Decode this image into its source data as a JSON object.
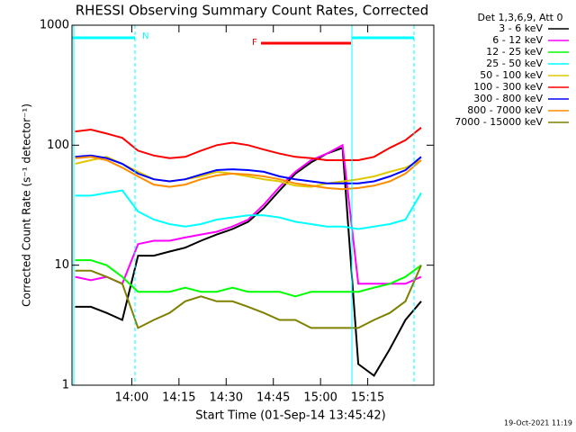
{
  "chart_data": {
    "type": "line",
    "title": "RHESSI Observing Summary Count Rates, Corrected",
    "x_label": "Start Time (01-Sep-14 13:45:42)",
    "y_label": "Corrected Count Rate (s⁻¹ detector⁻¹)",
    "legend_title": "Det 1,3,6,9, Att 0",
    "footer": "19-Oct-2021 11:19",
    "annotations": [
      "N",
      "F"
    ],
    "log_y": true,
    "xlim": [
      821,
      936
    ],
    "xticks": [
      {
        "value": 840,
        "label": "14:00"
      },
      {
        "value": 855,
        "label": "14:15"
      },
      {
        "value": 870,
        "label": "14:30"
      },
      {
        "value": 885,
        "label": "14:45"
      },
      {
        "value": 900,
        "label": "15:00"
      },
      {
        "value": 915,
        "label": "15:15"
      }
    ],
    "ylim": [
      1,
      1000
    ],
    "yticks": [
      1,
      10,
      100,
      1000
    ],
    "x": [
      822,
      827,
      832,
      837,
      842,
      847,
      852,
      857,
      862,
      867,
      872,
      877,
      882,
      887,
      892,
      897,
      902,
      907,
      912,
      917,
      922,
      927,
      932
    ],
    "series": [
      {
        "name": "3 - 6 keV",
        "color": "#000000",
        "values": [
          4.5,
          4.5,
          4,
          3.5,
          12,
          12,
          13,
          14,
          16,
          18,
          20,
          23,
          30,
          42,
          58,
          72,
          85,
          95,
          1.5,
          1.2,
          2,
          3.5,
          5
        ]
      },
      {
        "name": "6 - 12 keV",
        "color": "#ff00ff",
        "values": [
          8,
          7.5,
          8,
          7,
          15,
          16,
          16,
          17,
          18,
          19,
          21,
          24,
          32,
          45,
          60,
          75,
          85,
          100,
          7,
          7,
          7,
          7,
          8
        ]
      },
      {
        "name": "12 - 25 keV",
        "color": "#00ff00",
        "values": [
          11,
          11,
          10,
          8,
          6,
          6,
          6,
          6.5,
          6,
          6,
          6.5,
          6,
          6,
          6,
          5.5,
          6,
          6,
          6,
          6,
          6.5,
          7,
          8,
          10
        ]
      },
      {
        "name": "25 - 50 keV",
        "color": "#00ffff",
        "values": [
          38,
          38,
          40,
          42,
          28,
          24,
          22,
          21,
          22,
          24,
          25,
          26,
          26,
          25,
          23,
          22,
          21,
          21,
          20,
          21,
          22,
          24,
          40
        ]
      },
      {
        "name": "50 - 100 keV",
        "color": "#e0c800",
        "values": [
          70,
          75,
          80,
          70,
          60,
          52,
          50,
          52,
          55,
          60,
          58,
          55,
          52,
          50,
          46,
          45,
          48,
          50,
          52,
          55,
          60,
          65,
          75
        ]
      },
      {
        "name": "100 - 300 keV",
        "color": "#ff0000",
        "values": [
          130,
          135,
          125,
          115,
          90,
          82,
          78,
          80,
          90,
          100,
          105,
          100,
          92,
          85,
          80,
          78,
          75,
          75,
          75,
          80,
          95,
          110,
          140
        ]
      },
      {
        "name": "300 - 800 keV",
        "color": "#0000ff",
        "values": [
          80,
          82,
          78,
          70,
          58,
          52,
          50,
          52,
          57,
          62,
          63,
          62,
          60,
          55,
          52,
          50,
          48,
          48,
          48,
          50,
          55,
          62,
          80
        ]
      },
      {
        "name": "800 - 7000 keV",
        "color": "#ff8c00",
        "values": [
          78,
          80,
          75,
          65,
          55,
          47,
          45,
          47,
          52,
          56,
          58,
          57,
          55,
          52,
          48,
          46,
          44,
          43,
          44,
          46,
          50,
          58,
          75
        ]
      },
      {
        "name": "7000 - 15000 keV",
        "color": "#808000",
        "values": [
          9,
          9,
          8,
          7,
          3,
          3.5,
          4,
          5,
          5.5,
          5,
          5,
          4.5,
          4,
          3.5,
          3.5,
          3,
          3,
          3,
          3,
          3.5,
          4,
          5,
          10
        ]
      }
    ]
  }
}
